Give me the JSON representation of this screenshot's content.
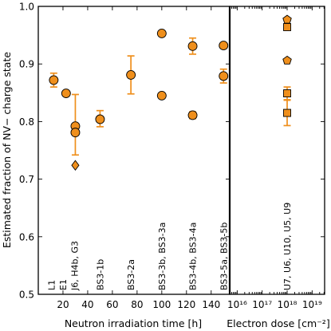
{
  "chart_data": [
    {
      "type": "scatter",
      "xlabel": "Neutron irradiation time [h]",
      "ylabel": "Estimated fraction of NV− charge state",
      "xlim": [
        0,
        155
      ],
      "ylim": [
        0.5,
        1.0
      ],
      "xticks": [
        20,
        40,
        60,
        80,
        100,
        120,
        140
      ],
      "yticks": [
        0.5,
        0.6,
        0.7,
        0.8,
        0.9,
        1.0
      ],
      "ytick_labels": [
        "0.5",
        "0.6",
        "0.7",
        "0.8",
        "0.9",
        "1.0"
      ],
      "marker_color": "#ef8f1c",
      "points": [
        {
          "x": 12.5,
          "y": 0.872,
          "err_lo": 0.012,
          "err_hi": 0.012,
          "marker": "circle"
        },
        {
          "x": 22.5,
          "y": 0.849,
          "marker": "circle"
        },
        {
          "x": 30,
          "y": 0.792,
          "err_lo": 0.05,
          "err_hi": 0.055,
          "marker": "circle"
        },
        {
          "x": 30,
          "y": 0.781,
          "marker": "circle"
        },
        {
          "x": 30,
          "y": 0.724,
          "marker": "diamond"
        },
        {
          "x": 50,
          "y": 0.804,
          "err_lo": 0.013,
          "err_hi": 0.015,
          "marker": "circle"
        },
        {
          "x": 75,
          "y": 0.881,
          "err_lo": 0.033,
          "err_hi": 0.033,
          "marker": "circle"
        },
        {
          "x": 100,
          "y": 0.953,
          "marker": "circle"
        },
        {
          "x": 100,
          "y": 0.845,
          "marker": "circle"
        },
        {
          "x": 125,
          "y": 0.931,
          "err_lo": 0.014,
          "err_hi": 0.014,
          "marker": "circle"
        },
        {
          "x": 125,
          "y": 0.811,
          "err_lo": 0.006,
          "err_hi": 0.006,
          "marker": "circle"
        },
        {
          "x": 150,
          "y": 0.932,
          "marker": "circle"
        },
        {
          "x": 150,
          "y": 0.879,
          "err_lo": 0.012,
          "err_hi": 0.012,
          "marker": "circle"
        }
      ],
      "sample_labels": [
        {
          "x": 10.5,
          "text": "L1"
        },
        {
          "x": 20,
          "text": "E1"
        },
        {
          "x": 29.5,
          "text": "J6, H4b, G3"
        },
        {
          "x": 50,
          "text": "BS3-1b"
        },
        {
          "x": 75,
          "text": "BS3-2a"
        },
        {
          "x": 100,
          "text": "BS3-3b, BS3-3a"
        },
        {
          "x": 125,
          "text": "BS3-4b, BS3-4a"
        },
        {
          "x": 150,
          "text": "BS3-5a, BS3-5b"
        }
      ]
    },
    {
      "type": "scatter",
      "xlabel": "Electron dose [cm⁻²]",
      "xscale": "log",
      "xlim_exp": [
        15.7,
        19.5
      ],
      "xtick_exps": [
        16,
        17,
        18,
        19
      ],
      "xtick_labels": [
        "10¹⁶",
        "10¹⁷",
        "10¹⁸",
        "10¹⁹"
      ],
      "ylim": [
        0.5,
        1.0
      ],
      "points": [
        {
          "x_exp": 18,
          "y": 0.977,
          "marker": "pentagon"
        },
        {
          "x_exp": 18,
          "y": 0.964,
          "marker": "square"
        },
        {
          "x_exp": 18,
          "y": 0.906,
          "marker": "pentagon"
        },
        {
          "x_exp": 18,
          "y": 0.849,
          "err_lo": 0.011,
          "err_hi": 0.011,
          "marker": "square"
        },
        {
          "x_exp": 18,
          "y": 0.815,
          "err_lo": 0.022,
          "err_hi": 0.022,
          "marker": "square"
        }
      ],
      "sample_labels": [
        {
          "x_exp": 18,
          "text": "U7, U6, U10, U5, U9"
        }
      ]
    }
  ]
}
